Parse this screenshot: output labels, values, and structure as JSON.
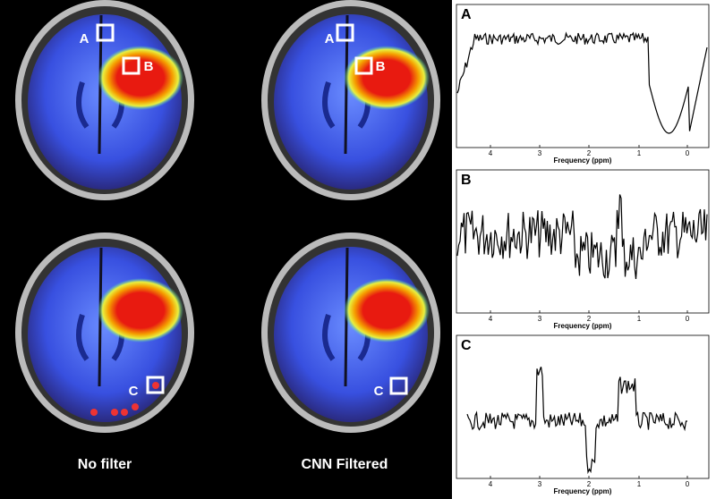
{
  "images": [
    {
      "caption": "No filter",
      "markers": [
        "A",
        "B",
        "C"
      ]
    },
    {
      "caption": "CNN Filtered",
      "markers": [
        "A",
        "B",
        "C"
      ]
    }
  ],
  "spectra": [
    {
      "label": "A",
      "x_ticks": [
        "4",
        "3",
        "2",
        "1",
        "0"
      ],
      "x_label": "Frequency (ppm)"
    },
    {
      "label": "B",
      "x_ticks": [
        "4",
        "3",
        "2",
        "1",
        "0"
      ],
      "x_label": "Frequency (ppm)"
    },
    {
      "label": "C",
      "x_ticks": [
        "4",
        "3",
        "2",
        "1",
        "0"
      ],
      "x_label": "Frequency (ppm)"
    }
  ]
}
